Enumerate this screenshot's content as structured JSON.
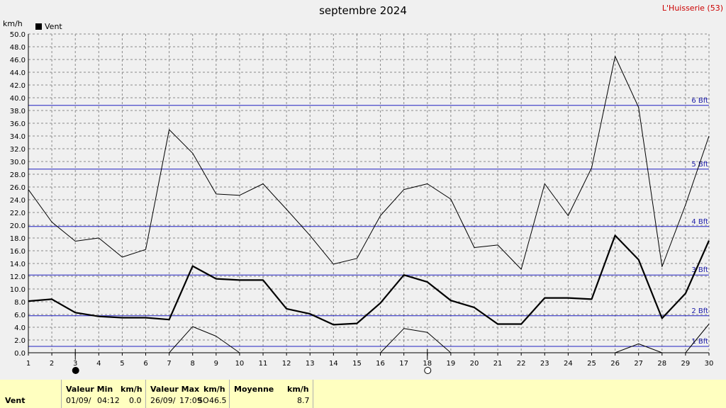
{
  "header": {
    "title": "septembre 2024",
    "station": "L'Huisserie (53)",
    "unit": "km/h",
    "legend_label": "Vent"
  },
  "chart_data": {
    "type": "line",
    "ylim": [
      0,
      50
    ],
    "xlim": [
      1,
      30
    ],
    "y_ticks": [
      "0.0",
      "2.0",
      "4.0",
      "6.0",
      "8.0",
      "10.0",
      "12.0",
      "14.0",
      "16.0",
      "18.0",
      "20.0",
      "22.0",
      "24.0",
      "26.0",
      "28.0",
      "30.0",
      "32.0",
      "34.0",
      "36.0",
      "38.0",
      "40.0",
      "42.0",
      "44.0",
      "46.0",
      "48.0",
      "50.0"
    ],
    "x_ticks": [
      "1",
      "2",
      "3",
      "4",
      "5",
      "6",
      "7",
      "8",
      "9",
      "10",
      "11",
      "12",
      "13",
      "14",
      "15",
      "16",
      "17",
      "18",
      "19",
      "20",
      "21",
      "22",
      "23",
      "24",
      "25",
      "26",
      "27",
      "28",
      "29",
      "30"
    ],
    "x": [
      1,
      2,
      3,
      4,
      5,
      6,
      7,
      8,
      9,
      10,
      11,
      12,
      13,
      14,
      15,
      16,
      17,
      18,
      19,
      20,
      21,
      22,
      23,
      24,
      25,
      26,
      27,
      28,
      29,
      30
    ],
    "series": [
      {
        "name": "Vent",
        "values": [
          8.1,
          8.4,
          6.3,
          5.7,
          5.5,
          5.5,
          5.2,
          13.6,
          11.6,
          11.4,
          11.4,
          6.9,
          6.1,
          4.4,
          4.6,
          7.8,
          12.2,
          11.1,
          8.2,
          7.1,
          4.5,
          4.5,
          8.6,
          8.6,
          8.4,
          18.4,
          14.6,
          5.4,
          9.3,
          17.6
        ]
      },
      {
        "values": [
          25.6,
          20.5,
          17.5,
          18.0,
          15.0,
          16.2,
          35.0,
          31.3,
          24.9,
          24.7,
          26.5,
          22.5,
          18.4,
          13.9,
          14.8,
          21.5,
          25.6,
          26.5,
          24.1,
          16.5,
          16.9,
          13.1,
          26.5,
          21.5,
          29.0,
          46.5,
          38.5,
          13.5,
          23.2,
          34.0
        ]
      },
      {
        "values": [
          null,
          null,
          null,
          null,
          null,
          null,
          0.0,
          4.1,
          2.6,
          0.0,
          null,
          null,
          null,
          null,
          null,
          0.0,
          3.8,
          3.2,
          0.0,
          null,
          null,
          null,
          null,
          null,
          null,
          0.0,
          1.4,
          0.0,
          0.0,
          4.5
        ]
      }
    ],
    "beaufort": [
      {
        "label": "1 Bft",
        "value": 1.0
      },
      {
        "label": "2 Bft",
        "value": 5.8
      },
      {
        "label": "3 Bft",
        "value": 12.2
      },
      {
        "label": "4 Bft",
        "value": 19.8
      },
      {
        "label": "5 Bft",
        "value": 28.8
      },
      {
        "label": "6 Bft",
        "value": 38.8
      }
    ],
    "moon": [
      {
        "day": 3,
        "phase": "new"
      },
      {
        "day": 18,
        "phase": "full"
      }
    ],
    "grid": true,
    "legend_position": "top-left"
  },
  "footer": {
    "row_label": "Vent",
    "min_head": "Valeur Min",
    "min_unit": "km/h",
    "min_date": "01/09/",
    "min_time": "04:12",
    "min_value": "0.0",
    "max_head": "Valeur Max",
    "max_unit": "km/h",
    "max_date": "26/09/",
    "max_time": "17:09",
    "max_dir": "SO",
    "max_value": "46.5",
    "avg_head": "Moyenne",
    "avg_unit": "km/h",
    "avg_value": "8.7"
  },
  "colors": {
    "background": "#f0f0f0",
    "beaufort_line": "#2020c0",
    "beaufort_text": "#1c1ca8",
    "station_text": "#cc0000",
    "footer_bg": "#ffffc0"
  }
}
